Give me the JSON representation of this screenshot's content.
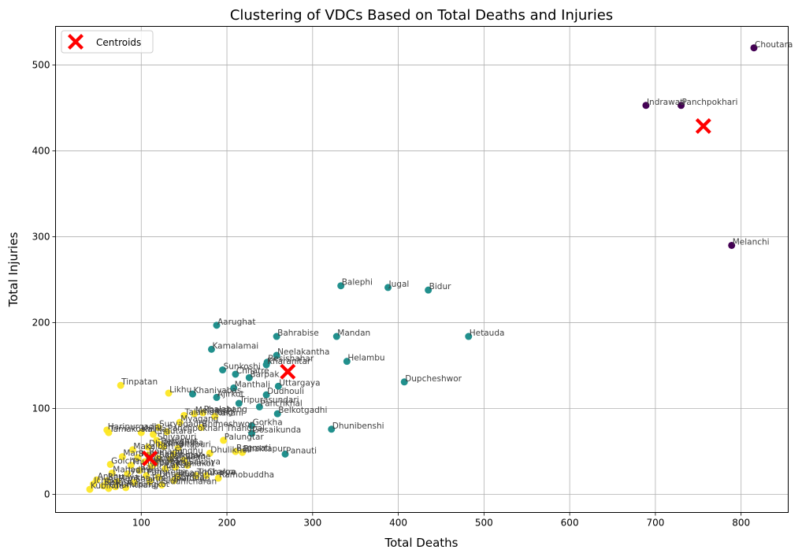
{
  "chart_data": {
    "type": "scatter",
    "title": "Clustering of VDCs Based on Total Deaths and Injuries",
    "xlabel": "Total Deaths",
    "ylabel": "Total Injuries",
    "xlim": [
      0,
      855
    ],
    "ylim": [
      -21,
      545
    ],
    "xticks": [
      100,
      200,
      300,
      400,
      500,
      600,
      700,
      800
    ],
    "yticks": [
      0,
      100,
      200,
      300,
      400,
      500
    ],
    "grid": true,
    "legend": {
      "position": "top-left",
      "entries": [
        "Centroids"
      ]
    },
    "colors": {
      "cluster0": "#440154",
      "cluster1": "#21908d",
      "cluster2": "#fde725",
      "centroid": "#ff0000"
    },
    "points": [
      {
        "label": "Choutara",
        "x": 815,
        "y": 520,
        "cluster": 0
      },
      {
        "label": "Indrawati",
        "x": 689,
        "y": 453,
        "cluster": 0
      },
      {
        "label": "Panchpokhari",
        "x": 730,
        "y": 453,
        "cluster": 0
      },
      {
        "label": "Melanchi",
        "x": 789,
        "y": 290,
        "cluster": 0
      },
      {
        "label": "Balephi",
        "x": 333,
        "y": 243,
        "cluster": 1
      },
      {
        "label": "Jugal",
        "x": 388,
        "y": 241,
        "cluster": 1
      },
      {
        "label": "Bidur",
        "x": 435,
        "y": 238,
        "cluster": 1
      },
      {
        "label": "Aarughat",
        "x": 188,
        "y": 197,
        "cluster": 1
      },
      {
        "label": "Bahrabise",
        "x": 258,
        "y": 184,
        "cluster": 1
      },
      {
        "label": "Mandan",
        "x": 328,
        "y": 184,
        "cluster": 1
      },
      {
        "label": "Hetauda",
        "x": 482,
        "y": 184,
        "cluster": 1
      },
      {
        "label": "Kamalamai",
        "x": 182,
        "y": 169,
        "cluster": 1
      },
      {
        "label": "Neelakantha",
        "x": 258,
        "y": 162,
        "cluster": 1
      },
      {
        "label": "Helambu",
        "x": 340,
        "y": 155,
        "cluster": 1
      },
      {
        "label": "Besishahar",
        "x": 247,
        "y": 154,
        "cluster": 1
      },
      {
        "label": "Kharanitar",
        "x": 246,
        "y": 151,
        "cluster": 1
      },
      {
        "label": "Sunkoshi",
        "x": 195,
        "y": 145,
        "cluster": 1
      },
      {
        "label": "Chhatre",
        "x": 210,
        "y": 140,
        "cluster": 1
      },
      {
        "label": "Barpak",
        "x": 226,
        "y": 136,
        "cluster": 1
      },
      {
        "label": "Dupcheshwor",
        "x": 407,
        "y": 131,
        "cluster": 1
      },
      {
        "label": "Manthali",
        "x": 208,
        "y": 124,
        "cluster": 1
      },
      {
        "label": "Uttargaya",
        "x": 260,
        "y": 126,
        "cluster": 1
      },
      {
        "label": "Khaniyabas",
        "x": 160,
        "y": 117,
        "cluster": 1
      },
      {
        "label": "Dudhouli",
        "x": 246,
        "y": 116,
        "cluster": 1
      },
      {
        "label": "Ajirkot",
        "x": 188,
        "y": 113,
        "cluster": 1
      },
      {
        "label": "Tripurasundari",
        "x": 214,
        "y": 106,
        "cluster": 1
      },
      {
        "label": "Panchkhal",
        "x": 238,
        "y": 102,
        "cluster": 1
      },
      {
        "label": "Belkotgadhi",
        "x": 259,
        "y": 94,
        "cluster": 1
      },
      {
        "label": "Gorkha",
        "x": 229,
        "y": 80,
        "cluster": 1
      },
      {
        "label": "Dhunibenshi",
        "x": 322,
        "y": 76,
        "cluster": 1
      },
      {
        "label": "Gosaikunda",
        "x": 229,
        "y": 71,
        "cluster": 1
      },
      {
        "label": "Panauti",
        "x": 268,
        "y": 47,
        "cluster": 1
      },
      {
        "label": "Tinpatan",
        "x": 76,
        "y": 127,
        "cluster": 2
      },
      {
        "label": "Likhu",
        "x": 132,
        "y": 118,
        "cluster": 2
      },
      {
        "label": "Talamarang",
        "x": 150,
        "y": 92,
        "cluster": 2
      },
      {
        "label": "Melamchi",
        "x": 162,
        "y": 94,
        "cluster": 2
      },
      {
        "label": "Phalabang",
        "x": 172,
        "y": 95,
        "cluster": 2
      },
      {
        "label": "Kakani",
        "x": 186,
        "y": 91,
        "cluster": 2
      },
      {
        "label": "Myagang",
        "x": 145,
        "y": 84,
        "cluster": 2
      },
      {
        "label": "Bhimeshwor",
        "x": 170,
        "y": 78,
        "cluster": 2
      },
      {
        "label": "Suryagadhi",
        "x": 120,
        "y": 78,
        "cluster": 2
      },
      {
        "label": "Haripurgadhi",
        "x": 60,
        "y": 75,
        "cluster": 2
      },
      {
        "label": "Tamakoshi",
        "x": 62,
        "y": 72,
        "cluster": 2
      },
      {
        "label": "Kalika",
        "x": 100,
        "y": 72,
        "cluster": 2
      },
      {
        "label": "Panchpokhari Thangpal",
        "x": 130,
        "y": 73,
        "cluster": 2
      },
      {
        "label": "Chautara",
        "x": 114,
        "y": 70,
        "cluster": 2
      },
      {
        "label": "Palungtar",
        "x": 196,
        "y": 63,
        "cluster": 2
      },
      {
        "label": "Shivapuri",
        "x": 118,
        "y": 63,
        "cluster": 2
      },
      {
        "label": "Benighat",
        "x": 122,
        "y": 58,
        "cluster": 2
      },
      {
        "label": "Nilkantha",
        "x": 126,
        "y": 56,
        "cluster": 2
      },
      {
        "label": "Sitapuri",
        "x": 143,
        "y": 54,
        "cluster": 2
      },
      {
        "label": "Makaibari",
        "x": 90,
        "y": 52,
        "cluster": 2
      },
      {
        "label": "Bagmati",
        "x": 210,
        "y": 50,
        "cluster": 2
      },
      {
        "label": "Dhulikhel",
        "x": 180,
        "y": 48,
        "cluster": 2
      },
      {
        "label": "Bhaktapur",
        "x": 218,
        "y": 49,
        "cluster": 2
      },
      {
        "label": "Sindhu",
        "x": 138,
        "y": 47,
        "cluster": 2
      },
      {
        "label": "Bajhang",
        "x": 108,
        "y": 46,
        "cluster": 2
      },
      {
        "label": "Marin",
        "x": 78,
        "y": 44,
        "cluster": 2
      },
      {
        "label": "Sunkhani",
        "x": 96,
        "y": 43,
        "cluster": 2
      },
      {
        "label": "Sanghutar",
        "x": 120,
        "y": 42,
        "cluster": 2
      },
      {
        "label": "Jalkanya",
        "x": 134,
        "y": 41,
        "cluster": 2
      },
      {
        "label": "Salme",
        "x": 150,
        "y": 40,
        "cluster": 2
      },
      {
        "label": "Rasuwa",
        "x": 104,
        "y": 38,
        "cluster": 2
      },
      {
        "label": "Golche",
        "x": 64,
        "y": 35,
        "cluster": 2
      },
      {
        "label": "Thulosirubari",
        "x": 88,
        "y": 34,
        "cluster": 2
      },
      {
        "label": "Pipaltar",
        "x": 112,
        "y": 33,
        "cluster": 2
      },
      {
        "label": "Lakuri",
        "x": 128,
        "y": 30,
        "cluster": 2
      },
      {
        "label": "Kapilakot",
        "x": 140,
        "y": 32,
        "cluster": 2
      },
      {
        "label": "Ramche",
        "x": 98,
        "y": 28,
        "cluster": 2
      },
      {
        "label": "Sakaiya",
        "x": 154,
        "y": 34,
        "cluster": 2
      },
      {
        "label": "Mahadev",
        "x": 66,
        "y": 25,
        "cluster": 2
      },
      {
        "label": "Jyamire",
        "x": 84,
        "y": 24,
        "cluster": 2
      },
      {
        "label": "Pangretar",
        "x": 106,
        "y": 22,
        "cluster": 2
      },
      {
        "label": "Dhuskun",
        "x": 120,
        "y": 20,
        "cluster": 2
      },
      {
        "label": "Lisankhu",
        "x": 142,
        "y": 21,
        "cluster": 2
      },
      {
        "label": "Thokarpa",
        "x": 164,
        "y": 22,
        "cluster": 2
      },
      {
        "label": "Chakre",
        "x": 176,
        "y": 22,
        "cluster": 2
      },
      {
        "label": "Ramobuddha",
        "x": 190,
        "y": 19,
        "cluster": 2
      },
      {
        "label": "Ankhu",
        "x": 48,
        "y": 17,
        "cluster": 2
      },
      {
        "label": "Baruwa",
        "x": 60,
        "y": 16,
        "cluster": 2
      },
      {
        "label": "Mankha",
        "x": 72,
        "y": 15,
        "cluster": 2
      },
      {
        "label": "Selang",
        "x": 92,
        "y": 14,
        "cluster": 2
      },
      {
        "label": "Thangpaldhap",
        "x": 110,
        "y": 15,
        "cluster": 2
      },
      {
        "label": "Gumba",
        "x": 138,
        "y": 16,
        "cluster": 2
      },
      {
        "label": "Siddhicharan",
        "x": 124,
        "y": 11,
        "cluster": 2
      },
      {
        "label": "Ichok",
        "x": 44,
        "y": 12,
        "cluster": 2
      },
      {
        "label": "Batase",
        "x": 56,
        "y": 10,
        "cluster": 2
      },
      {
        "label": "Kiul",
        "x": 70,
        "y": 9,
        "cluster": 2
      },
      {
        "label": "Kubinde",
        "x": 40,
        "y": 6,
        "cluster": 2
      },
      {
        "label": "Ghumthang",
        "x": 62,
        "y": 7,
        "cluster": 2
      },
      {
        "label": "Fulpingkot",
        "x": 82,
        "y": 8,
        "cluster": 2
      },
      {
        "label": "Dhading",
        "x": 108,
        "y": 55,
        "cluster": 2
      },
      {
        "label": "Nuwakot",
        "x": 116,
        "y": 36,
        "cluster": 2
      }
    ],
    "centroids": [
      {
        "x": 756,
        "y": 429
      },
      {
        "x": 271,
        "y": 143
      },
      {
        "x": 110,
        "y": 42
      }
    ]
  }
}
